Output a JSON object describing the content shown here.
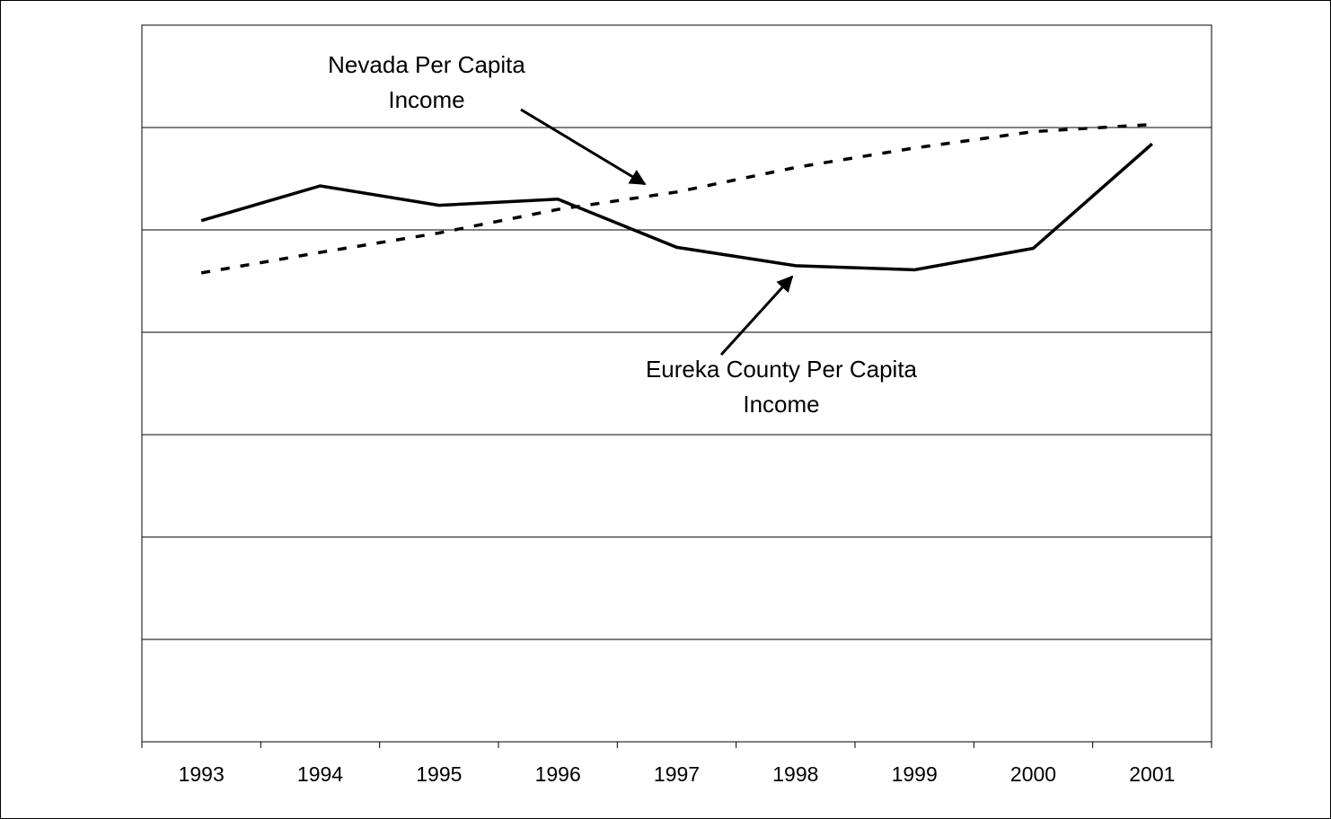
{
  "chart_data": {
    "type": "line",
    "categories": [
      "1993",
      "1994",
      "1995",
      "1996",
      "1997",
      "1998",
      "1999",
      "2000",
      "2001"
    ],
    "series": [
      {
        "name": "Eureka County Per Capita Income",
        "color": "#000000",
        "dash": "solid",
        "values": [
          5.09,
          5.43,
          5.24,
          5.3,
          4.83,
          4.65,
          4.61,
          4.82,
          5.84
        ]
      },
      {
        "name": "Nevada Per Capita Income",
        "color": "#000000",
        "dash": "dashed",
        "values": [
          4.58,
          4.78,
          4.97,
          5.2,
          5.37,
          5.61,
          5.8,
          5.96,
          6.03
        ]
      }
    ],
    "annotations": [
      {
        "lines": [
          "Nevada Per Capita",
          "Income"
        ]
      },
      {
        "lines": [
          "Eureka County Per Capita",
          "Income"
        ]
      }
    ],
    "ylim": [
      0,
      7
    ],
    "yticks": [
      0,
      1,
      2,
      3,
      4,
      5,
      6,
      7
    ],
    "grid": true
  }
}
